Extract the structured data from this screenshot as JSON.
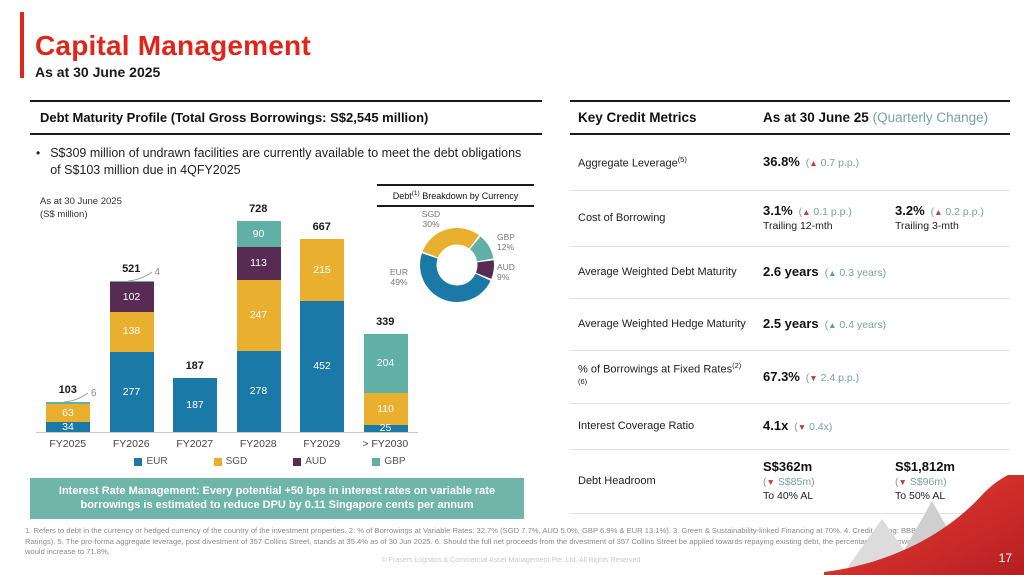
{
  "slide": {
    "title": "Capital Management",
    "subtitle": "As at 30 June 2025",
    "page_number": "17"
  },
  "colors": {
    "accent_red": "#E1251B",
    "eur_blue": "#1B79A8",
    "sgd_gold": "#E9AF2E",
    "aud_purple": "#582B55",
    "gbp_teal": "#61B0A5",
    "interest_box_teal": "#6FB5A9",
    "change_text_teal": "#76A49C",
    "arrow_up_down_bad": "#C63D2F",
    "arrow_good": "#56A392"
  },
  "left_panel": {
    "header": "Debt Maturity Profile (Total Gross Borrowings: S$2,545 million)",
    "bullet": "S$309 million of undrawn facilities are currently available to meet the debt obligations of S$103 million due in 4QFY2025",
    "chart_note_line1": "As at 30 June 2025",
    "chart_note_line2": "(S$ million)",
    "donut_title_prefix": "Debt",
    "donut_title_sup": "(1)",
    "donut_title_suffix": " Breakdown by Currency",
    "interest_box": "Interest Rate Management: Every potential +50 bps in interest rates on variable rate borrowings is estimated to reduce DPU by 0.11 Singapore cents per annum"
  },
  "chart_data": [
    {
      "type": "bar",
      "stacked": true,
      "title": "Debt Maturity Profile (Total Gross Borrowings: S$2,545 million)",
      "unit": "S$ million",
      "categories": [
        "FY2025",
        "FY2026",
        "FY2027",
        "FY2028",
        "FY2029",
        "> FY2030"
      ],
      "series": [
        {
          "name": "EUR",
          "color": "#1B79A8",
          "values": [
            34,
            277,
            187,
            278,
            452,
            25
          ]
        },
        {
          "name": "SGD",
          "color": "#E9AF2E",
          "values": [
            63,
            138,
            0,
            247,
            215,
            110
          ]
        },
        {
          "name": "AUD",
          "color": "#582B55",
          "values": [
            0,
            102,
            0,
            113,
            0,
            0
          ]
        },
        {
          "name": "GBP",
          "color": "#61B0A5",
          "values": [
            6,
            4,
            0,
            90,
            0,
            204
          ]
        }
      ],
      "totals": [
        103,
        521,
        187,
        728,
        667,
        339
      ],
      "callouts": [
        {
          "category": "FY2025",
          "series": "GBP",
          "value": 6
        },
        {
          "category": "FY2026",
          "series": "GBP",
          "value": 4
        }
      ],
      "ylim": [
        0,
        780
      ],
      "grid": false,
      "legend_position": "bottom"
    },
    {
      "type": "pie",
      "title": "Debt(1) Breakdown by Currency",
      "labels": [
        "SGD",
        "GBP",
        "AUD",
        "EUR"
      ],
      "values": [
        30,
        12,
        9,
        49
      ],
      "display": [
        "30%",
        "12%",
        "9%",
        "49%"
      ],
      "colors": [
        "#E9AF2E",
        "#61B0A5",
        "#582B55",
        "#1B79A8"
      ],
      "donut": true
    }
  ],
  "right_panel": {
    "header": "Key Credit Metrics",
    "col_header": "As at 30 June 25",
    "col_header_note": "(Quarterly Change)",
    "rows": [
      {
        "label": "Aggregate Leverage",
        "sup": "(5)",
        "cells": [
          {
            "value": "36.8%",
            "dir": "up",
            "tone": "bad",
            "change": "0.7 p.p."
          }
        ]
      },
      {
        "label": "Cost of Borrowing",
        "sup": "",
        "cells": [
          {
            "value": "3.1%",
            "dir": "up",
            "tone": "bad",
            "change": "0.1 p.p.",
            "sub": "Trailing 12-mth"
          },
          {
            "value": "3.2%",
            "dir": "up",
            "tone": "bad",
            "change": "0.2 p.p.",
            "sub": "Trailing 3-mth"
          }
        ]
      },
      {
        "label": "Average Weighted Debt Maturity",
        "sup": "",
        "cells": [
          {
            "value": "2.6 years",
            "dir": "up",
            "tone": "good",
            "change": "0.3 years"
          }
        ]
      },
      {
        "label": "Average Weighted Hedge Maturity",
        "sup": "",
        "cells": [
          {
            "value": "2.5 years",
            "dir": "up",
            "tone": "good",
            "change": "0.4 years"
          }
        ]
      },
      {
        "label": "% of Borrowings at Fixed Rates",
        "sup": "(2)(6)",
        "cells": [
          {
            "value": "67.3%",
            "dir": "down",
            "tone": "bad",
            "change": "2.4 p.p."
          }
        ]
      },
      {
        "label": "Interest Coverage Ratio",
        "sup": "",
        "cells": [
          {
            "value": "4.1x",
            "dir": "down",
            "tone": "bad",
            "change": "0.4x"
          }
        ]
      },
      {
        "label": "Debt Headroom",
        "sup": "",
        "cells": [
          {
            "value": "S$362m",
            "dir": "down",
            "tone": "bad",
            "change": "S$85m",
            "change_block": true,
            "sub": "To 40% AL"
          },
          {
            "value": "S$1,812m",
            "dir": "down",
            "tone": "bad",
            "change": "S$96m",
            "change_block": true,
            "sub": "To 50% AL"
          }
        ]
      }
    ]
  },
  "footer": {
    "footnotes": "1. Refers to debt in the currency or hedged currency of the country of the investment properties. 2. % of Borrowings at Variable Rates: 32.7% (SGD 7.7%, AUD 5.0%, GBP 6.9% & EUR 13.1%). 3. Green & Sustainability-linked Financing at 70%. 4. Credit Rating: BBB+ / Stable (Fitch Ratings). 5. The pro-forma aggregate leverage, post divestment of 357 Collins Street, stands at 35.4% as of 30 Jun 2025. 6. Should the full net proceeds from the divestment of 357 Collins Street be applied towards repaying existing debt, the percentage of borrowings at fixed rates would increase to 71.8%.",
    "copyright": "© Frasers Logistics & Commercial Asset Management Pte. Ltd. All Rights Reserved."
  }
}
